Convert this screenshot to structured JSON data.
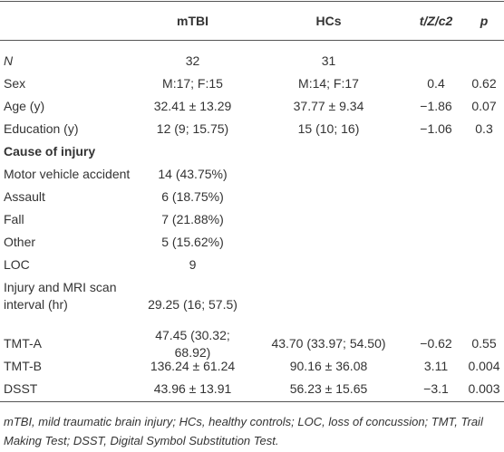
{
  "table": {
    "header": [
      null,
      "mTBI",
      "HCs",
      "t/Z/c2",
      "p"
    ],
    "rows": [
      [
        "N",
        "32",
        "31",
        null,
        null
      ],
      [
        "Sex",
        "M:17; F:15",
        "M:14; F:17",
        "0.4",
        "0.62"
      ],
      [
        "Age (y)",
        "32.41 ± 13.29",
        "37.77 ± 9.34",
        "−1.86",
        "0.07"
      ],
      [
        "Education (y)",
        "12 (9; 15.75)",
        "15 (10; 16)",
        "−1.06",
        "0.3"
      ],
      [
        "Cause of injury",
        null,
        null,
        null,
        null
      ],
      [
        "Motor vehicle accident",
        "14 (43.75%)",
        null,
        null,
        null
      ],
      [
        "Assault",
        "6 (18.75%)",
        null,
        null,
        null
      ],
      [
        "Fall",
        "7 (21.88%)",
        null,
        null,
        null
      ],
      [
        "Other",
        "5 (15.62%)",
        null,
        null,
        null
      ],
      [
        "LOC",
        "9",
        null,
        null,
        null
      ],
      [
        "Injury and MRI scan interval (hr)",
        "29.25 (16; 57.5)",
        null,
        null,
        null
      ],
      [
        "TMT-A",
        "47.45 (30.32; 68.92)",
        "43.70 (33.97; 54.50)",
        "−0.62",
        "0.55"
      ],
      [
        "TMT-B",
        "136.24 ± 61.24",
        "90.16 ± 36.08",
        "3.11",
        "0.004"
      ],
      [
        "DSST",
        "43.96 ± 13.91",
        "56.23 ± 15.65",
        "−3.1",
        "0.003"
      ]
    ]
  },
  "footnote": "mTBI, mild traumatic brain injury; HCs, healthy controls; LOC, loss of concussion; TMT, Trail Making Test; DSST, Digital Symbol Substitution Test."
}
